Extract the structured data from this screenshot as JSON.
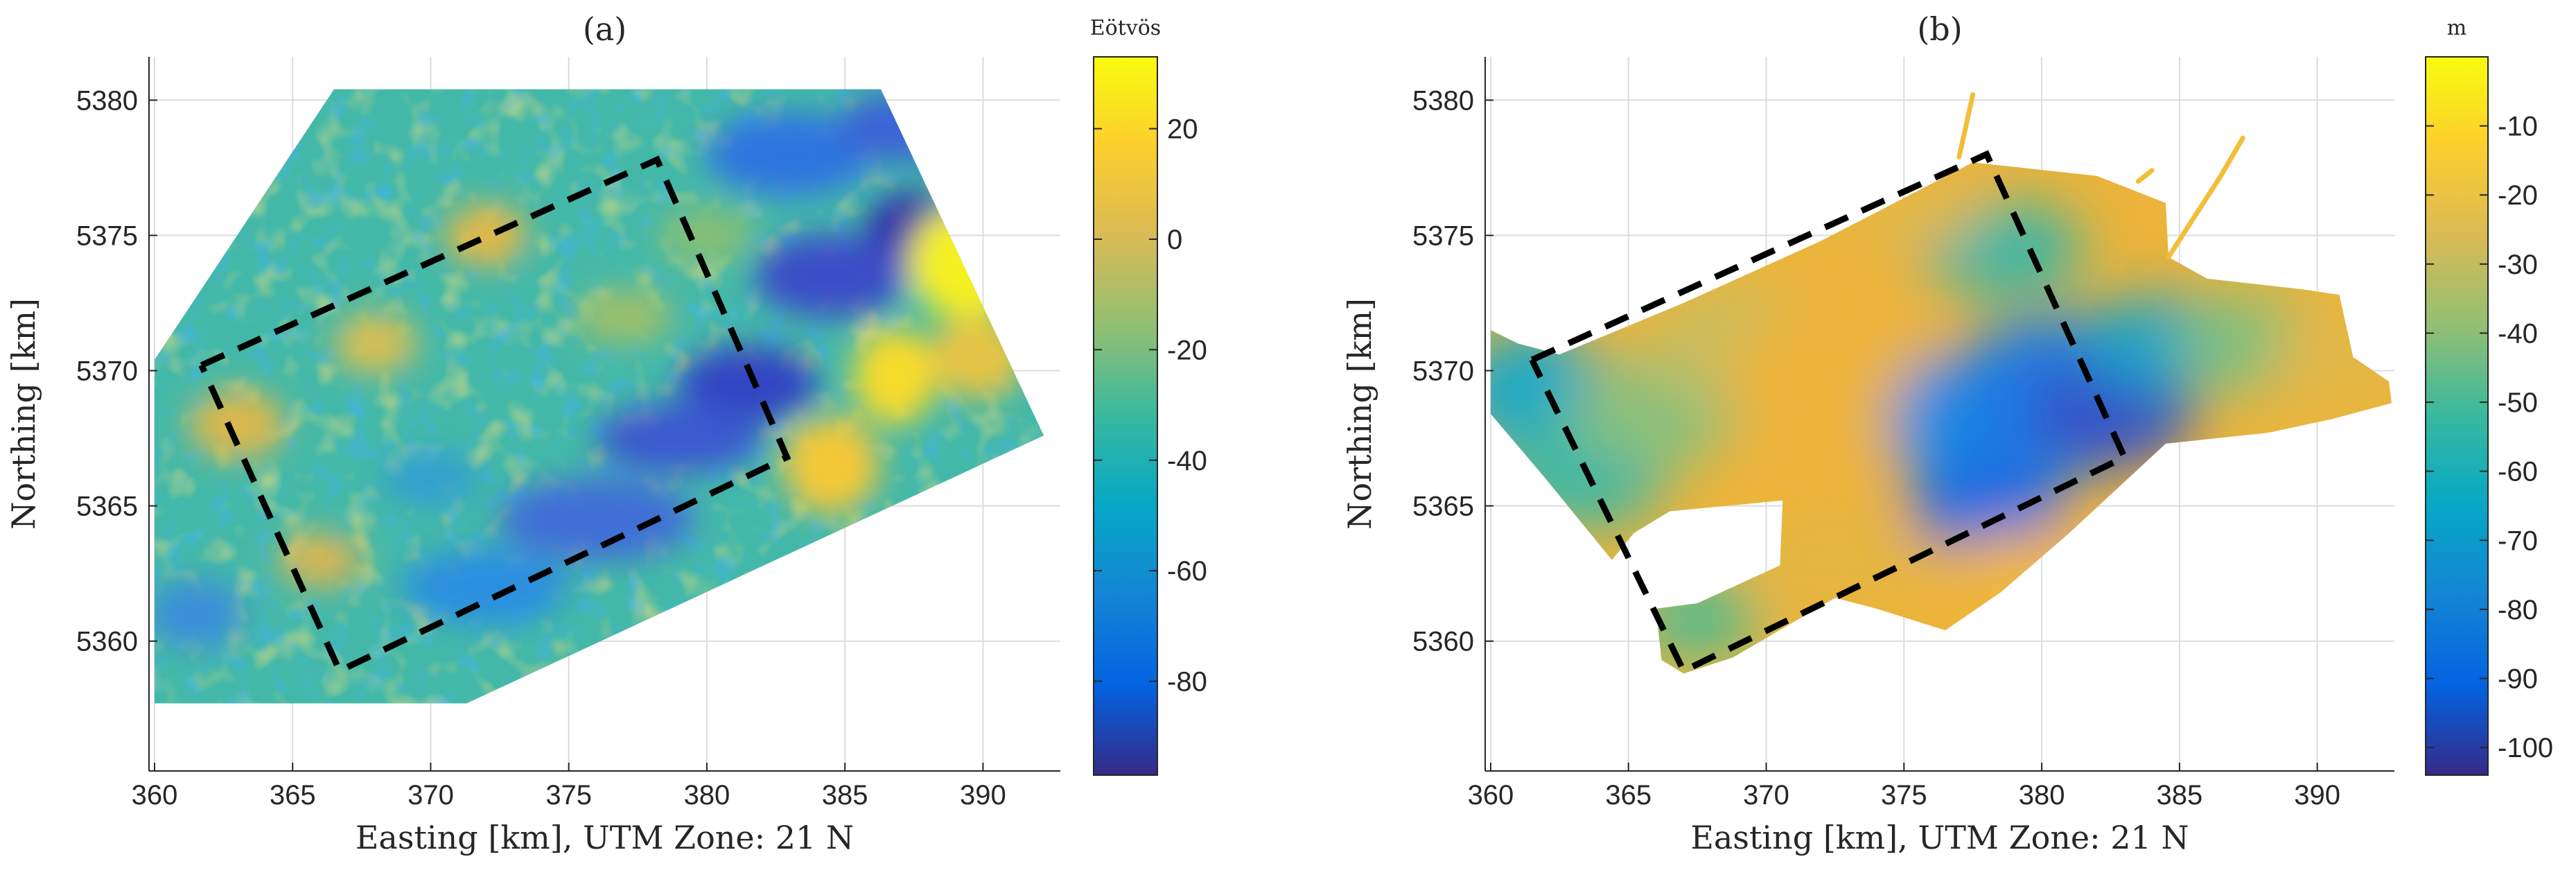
{
  "chart_data": [
    {
      "type": "heatmap",
      "panel_title": "(a)",
      "xlabel": "Easting [km], UTM Zone: 21 N",
      "ylabel": "Northing [km]",
      "xlim": [
        359.8,
        392.8
      ],
      "ylim": [
        5355.2,
        5381.6
      ],
      "xticks": [
        360,
        365,
        370,
        375,
        380,
        385,
        390
      ],
      "yticks": [
        5360,
        5365,
        5370,
        5375,
        5380
      ],
      "grid": true,
      "colorbar": {
        "unit_label": "Eötvös",
        "range": [
          -97,
          33
        ],
        "ticks": [
          20,
          0,
          -20,
          -40,
          -60,
          -80
        ]
      },
      "survey_outline": [
        [
          360,
          5370.4
        ],
        [
          366.5,
          5380.4
        ],
        [
          386.3,
          5380.4
        ],
        [
          392.2,
          5367.6
        ],
        [
          371.3,
          5357.7
        ],
        [
          360,
          5357.7
        ]
      ],
      "dashed_box": [
        [
          361.7,
          5370.2
        ],
        [
          378.2,
          5377.8
        ],
        [
          382.9,
          5366.8
        ],
        [
          366.7,
          5358.9
        ]
      ]
    },
    {
      "type": "heatmap",
      "panel_title": "(b)",
      "xlabel": "Easting [km], UTM Zone: 21 N",
      "ylabel": "Northing [km]",
      "xlim": [
        359.8,
        392.8
      ],
      "ylim": [
        5355.2,
        5381.6
      ],
      "xticks": [
        360,
        365,
        370,
        375,
        380,
        385,
        390
      ],
      "yticks": [
        5360,
        5365,
        5370,
        5375,
        5380
      ],
      "grid": true,
      "colorbar": {
        "unit_label": "m",
        "range": [
          -104,
          0
        ],
        "ticks": [
          -10,
          -20,
          -30,
          -40,
          -50,
          -60,
          -70,
          -80,
          -90,
          -100
        ]
      },
      "dashed_box": [
        [
          361.5,
          5370.4
        ],
        [
          378.0,
          5378.0
        ],
        [
          383.0,
          5366.8
        ],
        [
          367.0,
          5358.9
        ]
      ]
    }
  ]
}
